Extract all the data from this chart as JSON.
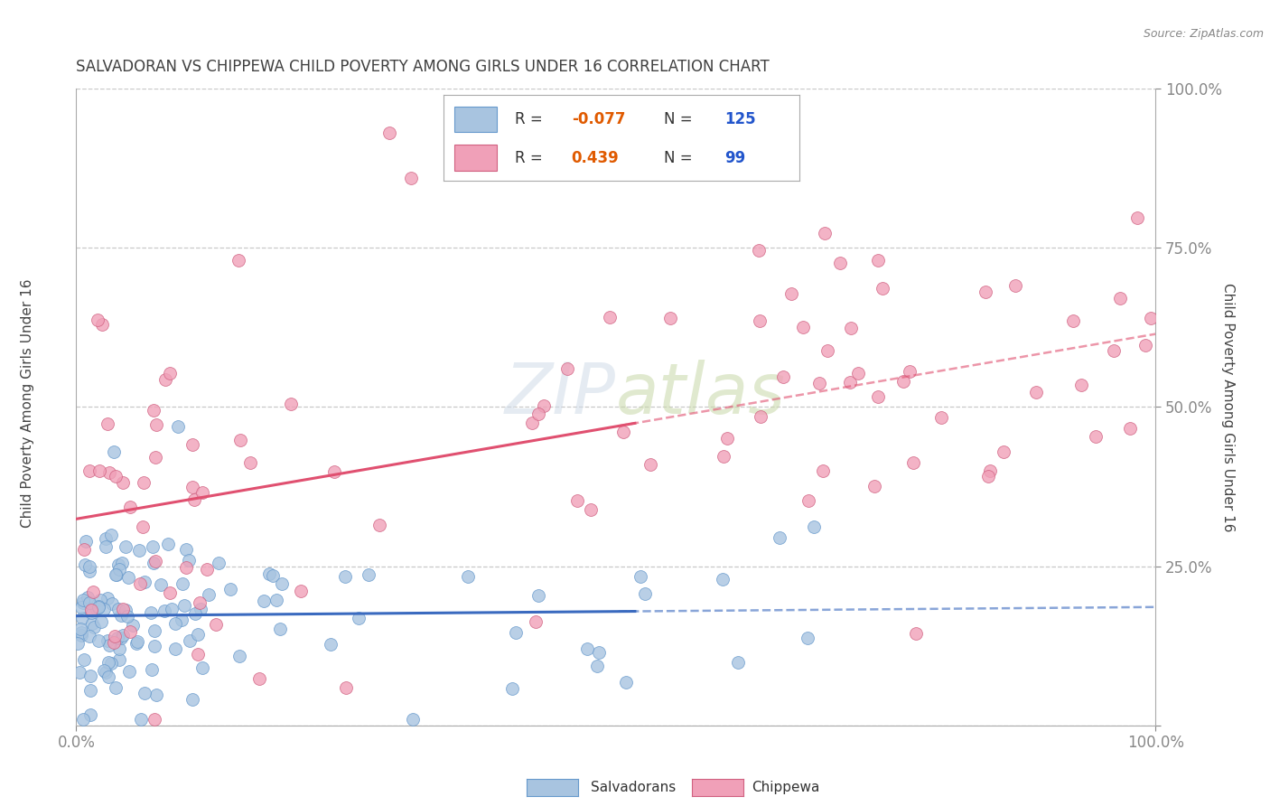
{
  "title": "SALVADORAN VS CHIPPEWA CHILD POVERTY AMONG GIRLS UNDER 16 CORRELATION CHART",
  "source": "Source: ZipAtlas.com",
  "ylabel": "Child Poverty Among Girls Under 16",
  "y_tick_positions": [
    0.0,
    0.25,
    0.5,
    0.75,
    1.0
  ],
  "y_tick_labels": [
    "",
    "25.0%",
    "50.0%",
    "75.0%",
    "100.0%"
  ],
  "x_tick_labels": [
    "0.0%",
    "100.0%"
  ],
  "watermark_text": "ZIPatlas",
  "legend_sal_R": "-0.077",
  "legend_sal_N": "125",
  "legend_chip_R": "0.439",
  "legend_chip_N": "99",
  "salvadoran_color": "#a8c4e0",
  "salvadoran_edge_color": "#6699cc",
  "chippewa_color": "#f0a0b8",
  "chippewa_edge_color": "#d06080",
  "salvadoran_line_color": "#3a6abf",
  "chippewa_line_solid_color": "#e05070",
  "chippewa_line_dash_color": "#a0b8d8",
  "salvadoran_line_dash_color": "#a0b8d8",
  "background_color": "#ffffff",
  "grid_color": "#c8c8c8",
  "title_color": "#404040",
  "ytick_color": "#4472c4",
  "xtick_color": "#555555",
  "title_fontsize": 12,
  "marker_size": 100,
  "legend_R_color": "#e05a00",
  "legend_N_color": "#2255cc",
  "legend_box_color": "#4472c4",
  "source_color": "#888888"
}
